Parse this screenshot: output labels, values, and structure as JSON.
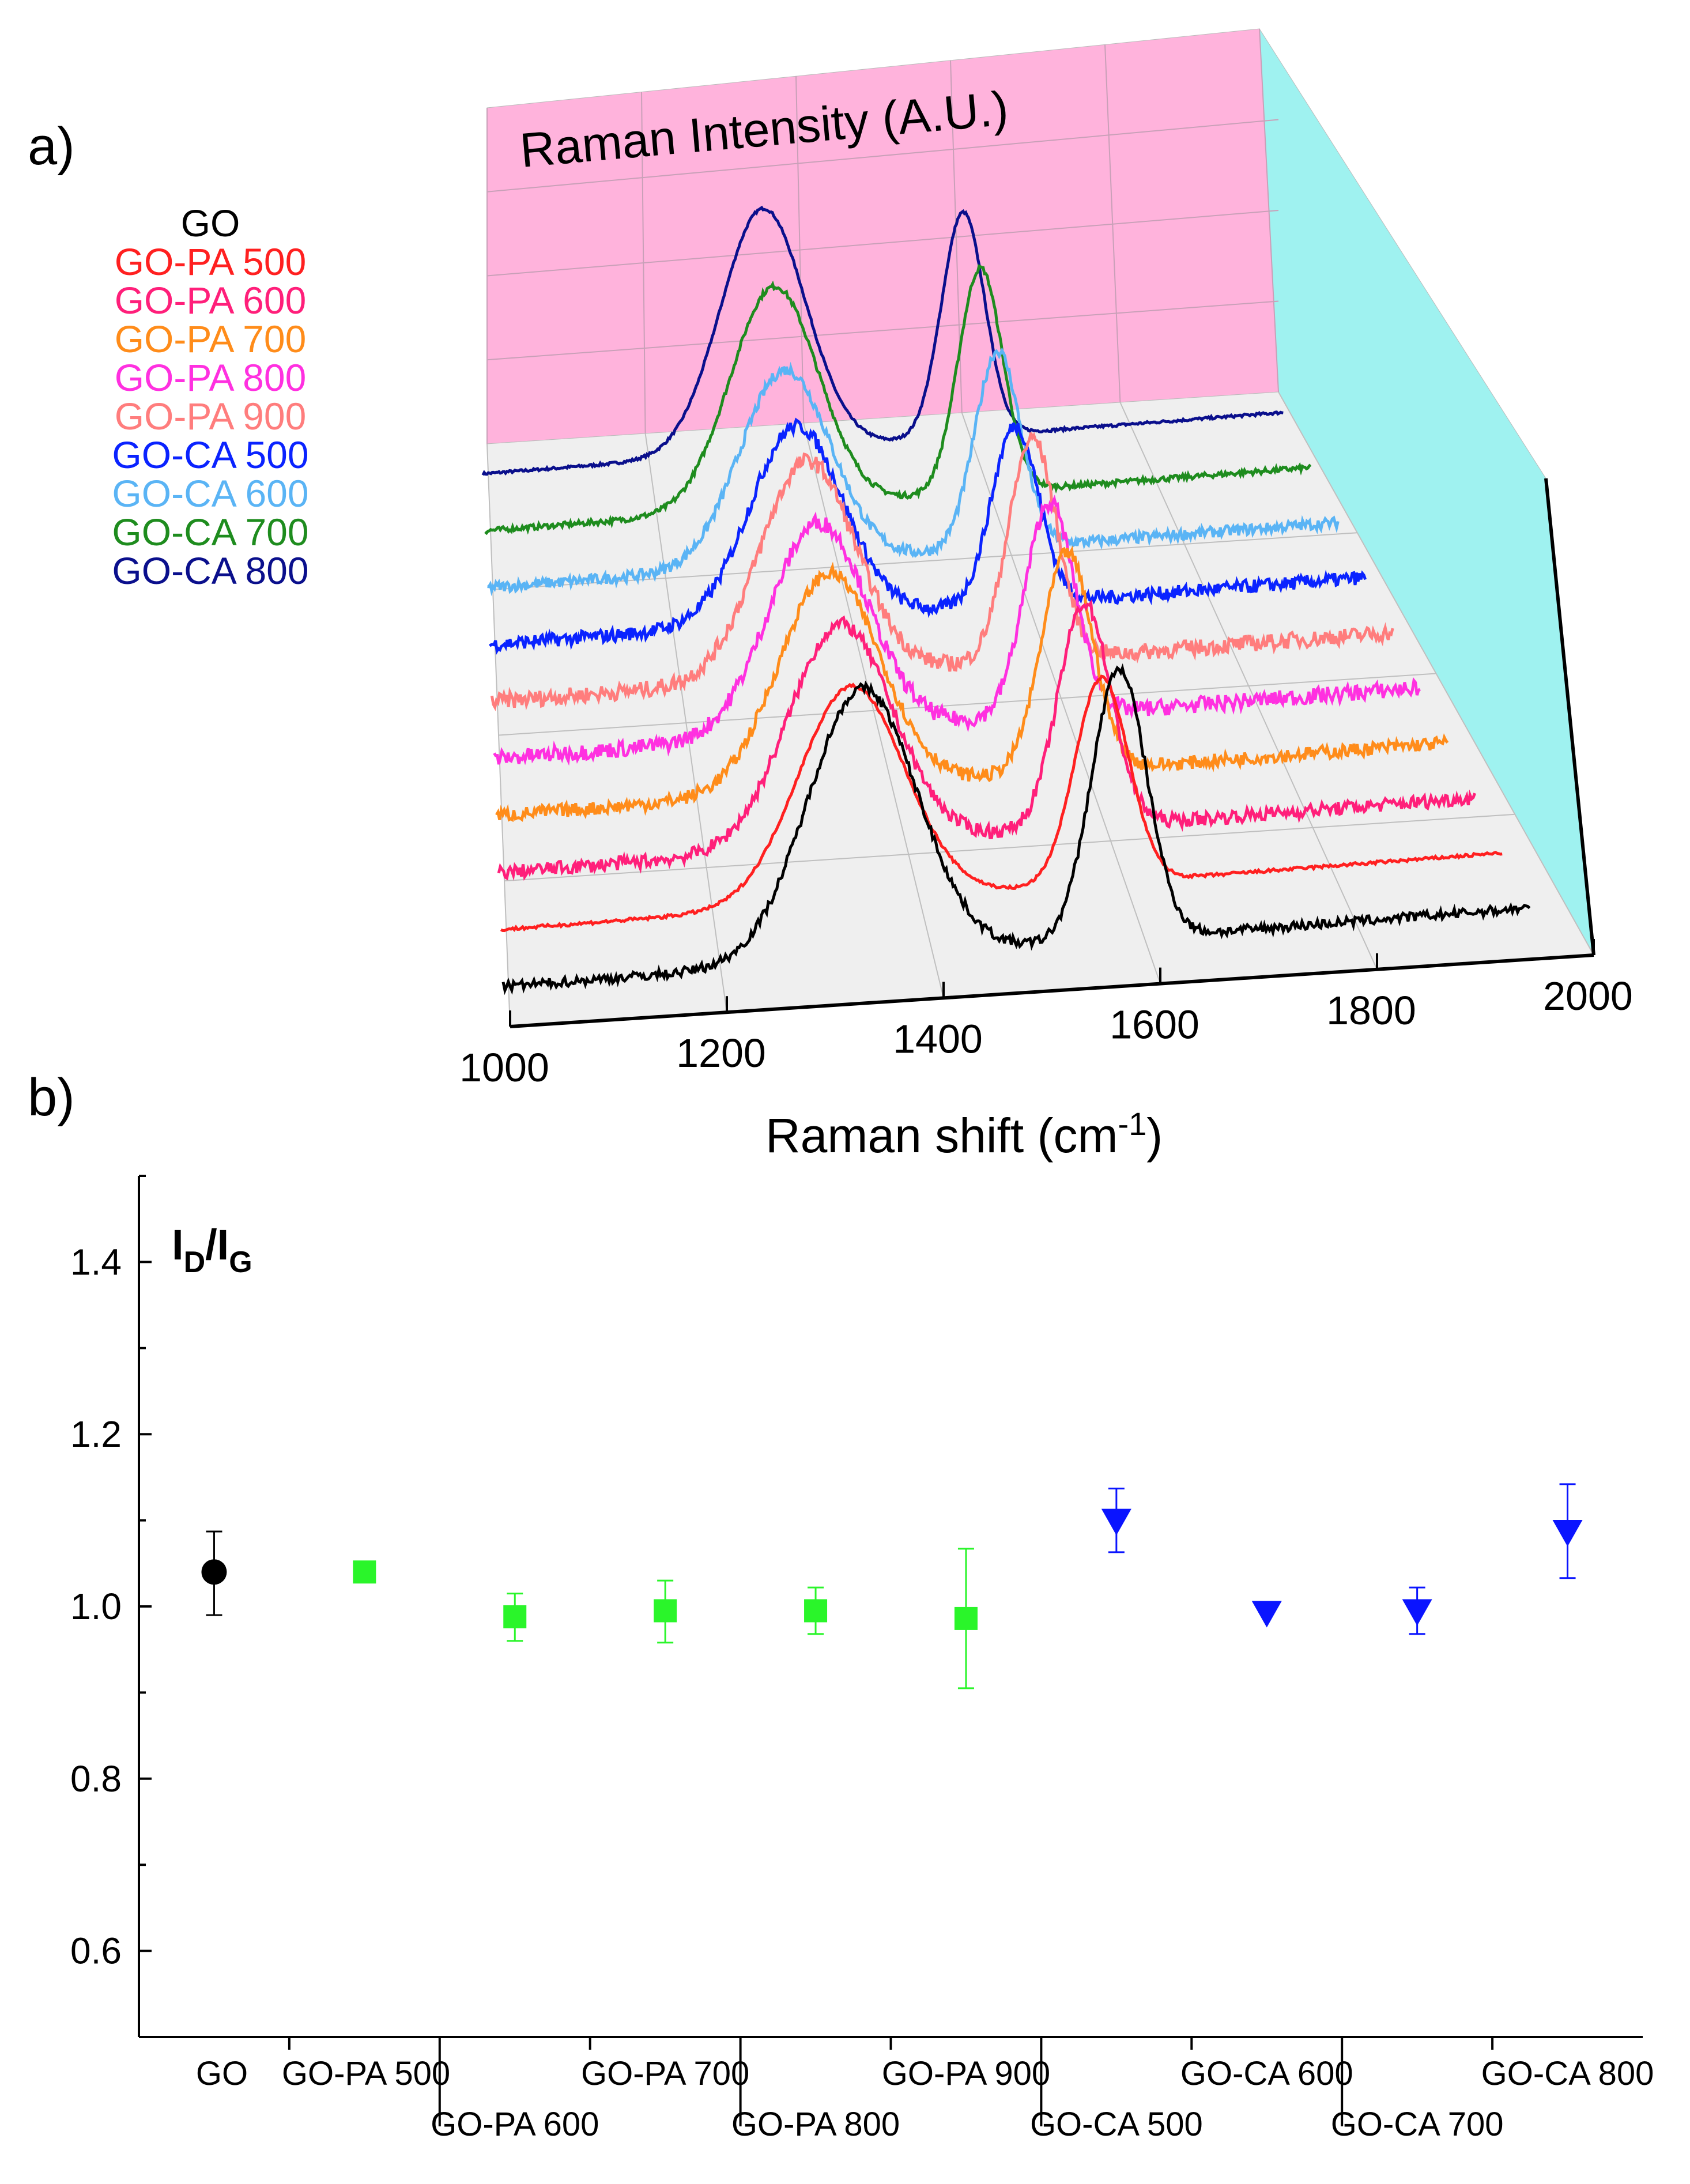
{
  "panel_labels": {
    "a": "a)",
    "b": "b)"
  },
  "colors": {
    "GO": "#000000",
    "GO-PA 500": "#ff2020",
    "GO-PA 600": "#ff1f7a",
    "GO-PA 700": "#ff8c1a",
    "GO-PA 800": "#ff30e0",
    "GO-PA 900": "#ff7d7d",
    "GO-CA 500": "#0a23ff",
    "GO-CA 600": "#5ab4f5",
    "GO-CA 700": "#1e8c1e",
    "GO-CA 800": "#0a0f8c",
    "back_wall": "#ffb3dc",
    "side_wall": "#9ff2f0",
    "floor": "#efefef",
    "pa_marker": "#2af52a",
    "ca_marker": "#0a14ff"
  },
  "chart_data": [
    {
      "type": "line",
      "subtype": "3d-waterfall",
      "title": "",
      "xlabel": "Raman shift (cm",
      "xlabel_sup": "-1",
      "xlabel_end": ")",
      "zlabel": "Raman Intensity (A.U.)",
      "xlim": [
        1000,
        2000
      ],
      "xticks": [
        "1000",
        "1200",
        "1400",
        "1600",
        "1800",
        "2000"
      ],
      "legend": [
        "GO",
        "GO-PA 500",
        "GO-PA 600",
        "GO-PA 700",
        "GO-PA 800",
        "GO-PA 900",
        "GO-CA 500",
        "GO-CA 600",
        "GO-CA 700",
        "GO-CA 800"
      ],
      "series": [
        {
          "name": "GO",
          "d_band": 1350,
          "g_band": 1600,
          "d_intensity": 1.0,
          "g_intensity": 1.0,
          "noise": 0.035
        },
        {
          "name": "GO-PA 500",
          "d_band": 1350,
          "g_band": 1600,
          "d_intensity": 0.8,
          "g_intensity": 0.76,
          "noise": 0.012
        },
        {
          "name": "GO-PA 600",
          "d_band": 1350,
          "g_band": 1600,
          "d_intensity": 0.82,
          "g_intensity": 0.83,
          "noise": 0.05
        },
        {
          "name": "GO-PA 700",
          "d_band": 1350,
          "g_band": 1600,
          "d_intensity": 0.8,
          "g_intensity": 0.81,
          "noise": 0.05
        },
        {
          "name": "GO-PA 800",
          "d_band": 1350,
          "g_band": 1600,
          "d_intensity": 0.78,
          "g_intensity": 0.79,
          "noise": 0.06
        },
        {
          "name": "GO-PA 900",
          "d_band": 1350,
          "g_band": 1600,
          "d_intensity": 0.8,
          "g_intensity": 0.82,
          "noise": 0.06
        },
        {
          "name": "GO-CA 500",
          "d_band": 1350,
          "g_band": 1600,
          "d_intensity": 0.72,
          "g_intensity": 0.66,
          "noise": 0.05
        },
        {
          "name": "GO-CA 600",
          "d_band": 1350,
          "g_band": 1600,
          "d_intensity": 0.72,
          "g_intensity": 0.73,
          "noise": 0.04
        },
        {
          "name": "GO-CA 700",
          "d_band": 1350,
          "g_band": 1600,
          "d_intensity": 0.82,
          "g_intensity": 0.83,
          "noise": 0.02
        },
        {
          "name": "GO-CA 800",
          "d_band": 1350,
          "g_band": 1600,
          "d_intensity": 0.9,
          "g_intensity": 0.83,
          "noise": 0.01
        }
      ]
    },
    {
      "type": "scatter",
      "title": "",
      "ylabel_main": "I",
      "ylabel_sub_d": "D",
      "ylabel_slash": "/I",
      "ylabel_sub_g": "G",
      "ylim": [
        0.5,
        1.5
      ],
      "yticks": [
        "0.6",
        "0.8",
        "1.0",
        "1.2",
        "1.4"
      ],
      "categories": [
        "GO",
        "GO-PA 500",
        "GO-PA 600",
        "GO-PA 700",
        "GO-PA 800",
        "GO-PA 900",
        "GO-CA 500",
        "GO-CA 600",
        "GO-CA 700",
        "GO-CA 800"
      ],
      "series": [
        {
          "name": "GO",
          "marker": "circle",
          "points": [
            {
              "x": 0.5,
              "y": 1.04,
              "err_low": 0.99,
              "err_high": 1.087
            }
          ]
        },
        {
          "name": "GO-PA",
          "marker": "square",
          "points": [
            {
              "x": 1.5,
              "y": 1.04,
              "err_low": 1.04,
              "err_high": 1.04
            },
            {
              "x": 2.5,
              "y": 0.988,
              "err_low": 0.96,
              "err_high": 1.015
            },
            {
              "x": 3.5,
              "y": 0.995,
              "err_low": 0.958,
              "err_high": 1.03
            },
            {
              "x": 4.5,
              "y": 0.995,
              "err_low": 0.968,
              "err_high": 1.022
            },
            {
              "x": 5.5,
              "y": 0.986,
              "err_low": 0.905,
              "err_high": 1.067
            }
          ]
        },
        {
          "name": "GO-CA",
          "marker": "triangle-down",
          "points": [
            {
              "x": 6.5,
              "y": 1.1,
              "err_low": 1.063,
              "err_high": 1.137
            },
            {
              "x": 7.5,
              "y": 0.993,
              "err_low": 0.993,
              "err_high": 0.993
            },
            {
              "x": 8.5,
              "y": 0.995,
              "err_low": 0.968,
              "err_high": 1.022
            },
            {
              "x": 9.5,
              "y": 1.087,
              "err_low": 1.033,
              "err_high": 1.142
            }
          ]
        }
      ]
    }
  ]
}
